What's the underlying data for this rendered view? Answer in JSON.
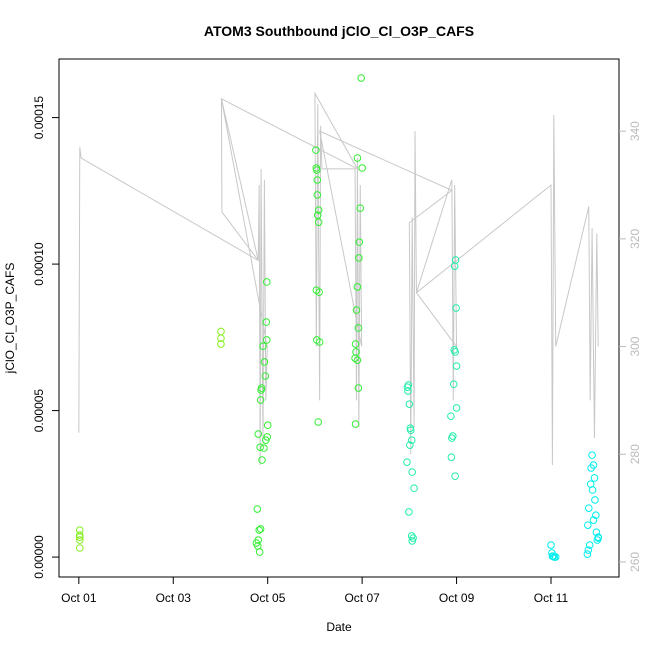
{
  "chart_data": {
    "type": "scatter",
    "title": "ATOM3 Southbound jClO_Cl_O3P_CAFS",
    "xlabel": "Date",
    "ylabel": "jClO_Cl_O3P_CAFS",
    "xlim": [
      0.58,
      12.44
    ],
    "xticks": [
      {
        "value": 1,
        "label": "Oct 01"
      },
      {
        "value": 3,
        "label": "Oct 03"
      },
      {
        "value": 5,
        "label": "Oct 05"
      },
      {
        "value": 7,
        "label": "Oct 07"
      },
      {
        "value": 9,
        "label": "Oct 09"
      },
      {
        "value": 11,
        "label": "Oct 11"
      }
    ],
    "ylim": [
      -6.8e-06,
      0.00017
    ],
    "yticks": [
      {
        "value": 0,
        "label": "0.00000"
      },
      {
        "value": 5e-05,
        "label": "0.00005"
      },
      {
        "value": 0.0001,
        "label": "0.00010"
      },
      {
        "value": 0.00015,
        "label": "0.00015"
      }
    ],
    "y2lim": [
      257.2,
      353.4
    ],
    "y2ticks": [
      260,
      280,
      300,
      320,
      340
    ],
    "y2color": "#bbbbbb",
    "series": [
      {
        "type": "scatter",
        "color": "#88ee22",
        "x": [
          1.02,
          1.02,
          1.02,
          1.02,
          1.02,
          4.01,
          4.01,
          4.01
        ],
        "values": [
          9.2e-06,
          7.5e-06,
          6.8e-06,
          5.8e-06,
          3.1e-06,
          7.7e-05,
          7.47e-05,
          7.27e-05
        ]
      },
      {
        "type": "scatter",
        "color": "#33ee33",
        "x": [
          4.78,
          4.82,
          4.8,
          4.76,
          4.79,
          4.83,
          4.85,
          4.88,
          4.92,
          4.96,
          4.8,
          4.84,
          4.99,
          5.0,
          4.86,
          4.85,
          4.87,
          4.95,
          4.93,
          4.98,
          4.98,
          4.97,
          4.9,
          6.02,
          6.04,
          6.03,
          6.05,
          6.05,
          6.08,
          6.06,
          6.08,
          6.03,
          6.09,
          6.04,
          6.1,
          6.07,
          6.98,
          6.9,
          7.0,
          6.96,
          6.94,
          6.93,
          6.9,
          6.88,
          6.92,
          6.86,
          6.87,
          6.85,
          6.9,
          6.92,
          6.86
        ],
        "values": [
          1.64e-05,
          9.2e-06,
          5.8e-06,
          4.8e-06,
          3.8e-06,
          1.7e-06,
          9.6e-06,
          3.31e-05,
          3.72e-05,
          3.99e-05,
          4.2e-05,
          3.75e-05,
          4.1e-05,
          4.5e-05,
          5.7e-05,
          5.36e-05,
          5.77e-05,
          6.18e-05,
          6.66e-05,
          7.41e-05,
          9.39e-05,
          8.02e-05,
          7.2e-05,
          0.0001389,
          0.0001321,
          0.0001328,
          0.0001287,
          0.0001236,
          0.0001184,
          0.0001167,
          0.0001143,
          9.11e-05,
          9.04e-05,
          7.41e-05,
          7.34e-05,
          4.61e-05,
          0.0001635,
          0.0001362,
          0.0001328,
          0.0001191,
          0.0001075,
          0.0001021,
          9.22e-05,
          8.43e-05,
          7.82e-05,
          7.27e-05,
          7e-05,
          6.79e-05,
          6.72e-05,
          5.77e-05,
          4.54e-05
        ]
      },
      {
        "type": "scatter",
        "color": "#22eeaa",
        "x": [
          7.96,
          7.98,
          7.97,
          8.0,
          8.02,
          8.03,
          8.05,
          8.01,
          7.95,
          8.06,
          8.1,
          7.99,
          8.05,
          8.06,
          8.08,
          8.98,
          8.96,
          8.99,
          8.95,
          8.97,
          9.0,
          8.94,
          9.0,
          8.88,
          8.92,
          8.9,
          8.89,
          8.97
        ],
        "values": [
          5.8e-05,
          5.87e-05,
          5.67e-05,
          5.22e-05,
          4.4e-05,
          4.33e-05,
          3.99e-05,
          3.82e-05,
          3.24e-05,
          2.9e-05,
          2.35e-05,
          1.54e-05,
          7.2e-06,
          5.5e-06,
          6.5e-06,
          0.0001014,
          9.93e-05,
          8.5e-05,
          7.07e-05,
          7e-05,
          6.52e-05,
          5.9e-05,
          5.09e-05,
          4.81e-05,
          4.13e-05,
          4.06e-05,
          3.41e-05,
          2.76e-05
        ]
      },
      {
        "type": "scatter",
        "color": "#00eeee",
        "x": [
          11.0,
          11.02,
          11.03,
          11.05,
          11.07,
          11.1,
          11.87,
          11.9,
          11.85,
          11.92,
          11.84,
          11.88,
          11.93,
          11.8,
          11.95,
          11.9,
          11.78,
          11.96,
          12.0,
          11.82,
          11.79,
          11.77,
          12.0,
          11.98
        ],
        "values": [
          4.1e-06,
          1.4e-06,
          3e-07,
          3e-07,
          0,
          0,
          3.48e-05,
          3.14e-05,
          3.04e-05,
          2.7e-05,
          2.49e-05,
          2.29e-05,
          1.95e-05,
          1.67e-05,
          1.43e-05,
          1.26e-05,
          1.09e-05,
          8.5e-06,
          6.5e-06,
          4.1e-06,
          2.4e-06,
          1e-06,
          6.8e-06,
          5.8e-06
        ]
      },
      {
        "type": "line",
        "axis": "y2",
        "color": "#c8c8c8",
        "x": [
          1.0,
          1.02,
          1.05,
          4.8,
          4.82,
          4.84,
          4.86,
          4.9,
          4.93,
          4.96,
          4.99,
          4.02,
          4.03,
          4.8,
          4.02,
          6.9,
          6.0,
          6.03,
          6.06,
          6.1,
          6.12,
          6.15,
          6.85,
          6.88,
          6.9,
          6.93,
          6.96,
          6.99,
          6.1,
          8.9,
          8.0,
          8.03,
          8.06,
          8.1,
          8.12,
          8.15,
          8.9,
          8.93,
          8.96,
          9.0,
          8.15,
          11.0,
          11.03,
          11.06,
          11.1,
          11.8,
          11.83,
          11.87,
          11.92,
          11.97,
          12.0
        ],
        "values": [
          284,
          337,
          335,
          316,
          330,
          278,
          333,
          282,
          331,
          290,
          300,
          346,
          325,
          316,
          346,
          333,
          347,
          300,
          345,
          290,
          341,
          333,
          333,
          290,
          335,
          285,
          330,
          300,
          340,
          329,
          323,
          280,
          324,
          285,
          340,
          310,
          331,
          290,
          330,
          300,
          310,
          330,
          278,
          343,
          300,
          326,
          290,
          322,
          283,
          321,
          300
        ]
      }
    ]
  }
}
